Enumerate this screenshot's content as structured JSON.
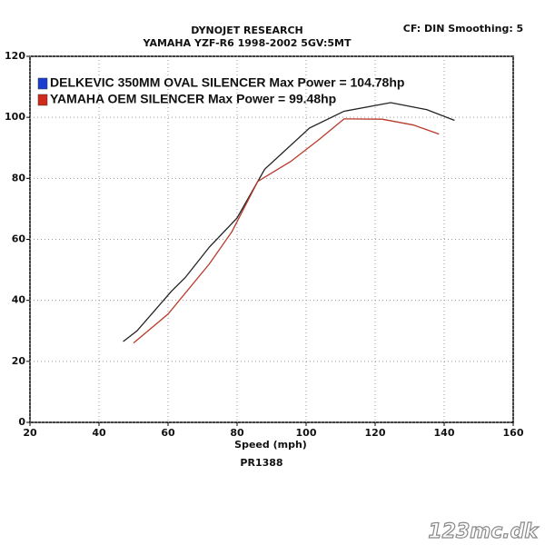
{
  "chart_data": {
    "type": "line",
    "title": "DYNOJET RESEARCH",
    "subtitle": "YAMAHA YZF-R6 1998-2002 5GV:5MT",
    "annotation": "CF: DIN  Smoothing: 5",
    "xlabel": "Speed (mph)",
    "footnote": "PR1388",
    "watermark": "123mc.dk",
    "xlim": [
      20,
      160
    ],
    "xticks": [
      20,
      40,
      60,
      80,
      100,
      120,
      140,
      160
    ],
    "ylim": [
      0,
      120
    ],
    "yticks": [
      0,
      20,
      40,
      60,
      80,
      100,
      120
    ],
    "grid": true,
    "series": [
      {
        "name": "DELKEVIC 350MM OVAL SILENCER  Max Power = 104.78hp",
        "color": "#222222",
        "swatch": "#1a3fd0",
        "x": [
          47,
          51,
          61,
          65,
          72,
          80,
          88,
          101,
          111,
          124.5,
          135,
          143
        ],
        "values": [
          26.5,
          30,
          43,
          47.5,
          57.5,
          67,
          83,
          96.5,
          102,
          104.8,
          102.5,
          99
        ]
      },
      {
        "name": "YAMAHA OEM SILENCER Max Power = 99.48hp",
        "color": "#b83a2a",
        "swatch": "#d02a1a",
        "x": [
          50,
          60,
          72,
          78.5,
          86,
          95.5,
          103.5,
          111,
          122,
          131,
          138.5
        ],
        "values": [
          26,
          35.5,
          52,
          62.5,
          79,
          85.5,
          92.5,
          99.5,
          99.4,
          97.5,
          94.5
        ]
      }
    ]
  }
}
